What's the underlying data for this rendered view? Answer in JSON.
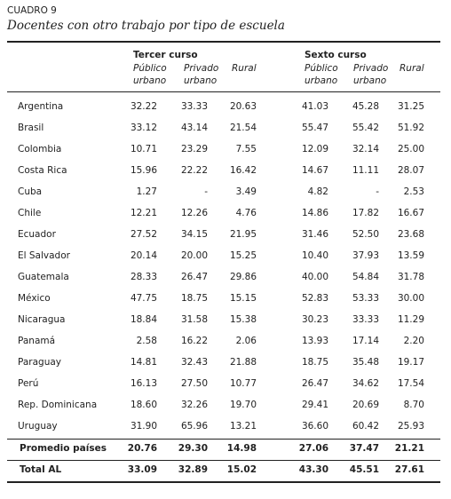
{
  "header": {
    "label": "CUADRO 9",
    "title": "Docentes con otro trabajo por tipo de escuela"
  },
  "table": {
    "groups": [
      "Tercer curso",
      "Sexto curso"
    ],
    "columns": [
      [
        "Público",
        "urbano"
      ],
      [
        "Privado",
        "urbano"
      ],
      [
        "Rural"
      ],
      [
        "Público",
        "urbano"
      ],
      [
        "Privado",
        "urbano"
      ],
      [
        "Rural"
      ]
    ],
    "rows": [
      [
        "Argentina",
        "32.22",
        "33.33",
        "20.63",
        "41.03",
        "45.28",
        "31.25"
      ],
      [
        "Brasil",
        "33.12",
        "43.14",
        "21.54",
        "55.47",
        "55.42",
        "51.92"
      ],
      [
        "Colombia",
        "10.71",
        "23.29",
        "7.55",
        "12.09",
        "32.14",
        "25.00"
      ],
      [
        "Costa Rica",
        "15.96",
        "22.22",
        "16.42",
        "14.67",
        "11.11",
        "28.07"
      ],
      [
        "Cuba",
        "1.27",
        "-",
        "3.49",
        "4.82",
        "-",
        "2.53"
      ],
      [
        "Chile",
        "12.21",
        "12.26",
        "4.76",
        "14.86",
        "17.82",
        "16.67"
      ],
      [
        "Ecuador",
        "27.52",
        "34.15",
        "21.95",
        "31.46",
        "52.50",
        "23.68"
      ],
      [
        "El Salvador",
        "20.14",
        "20.00",
        "15.25",
        "10.40",
        "37.93",
        "13.59"
      ],
      [
        "Guatemala",
        "28.33",
        "26.47",
        "29.86",
        "40.00",
        "54.84",
        "31.78"
      ],
      [
        "México",
        "47.75",
        "18.75",
        "15.15",
        "52.83",
        "53.33",
        "30.00"
      ],
      [
        "Nicaragua",
        "18.84",
        "31.58",
        "15.38",
        "30.23",
        "33.33",
        "11.29"
      ],
      [
        "Panamá",
        "2.58",
        "16.22",
        "2.06",
        "13.93",
        "17.14",
        "2.20"
      ],
      [
        "Paraguay",
        "14.81",
        "32.43",
        "21.88",
        "18.75",
        "35.48",
        "19.17"
      ],
      [
        "Perú",
        "16.13",
        "27.50",
        "10.77",
        "26.47",
        "34.62",
        "17.54"
      ],
      [
        "Rep. Dominicana",
        "18.60",
        "32.26",
        "19.70",
        "29.41",
        "20.69",
        "8.70"
      ],
      [
        "Uruguay",
        "31.90",
        "65.96",
        "13.21",
        "36.60",
        "60.42",
        "25.93"
      ]
    ],
    "summary_rows": [
      [
        "Promedio países",
        "20.76",
        "29.30",
        "14.98",
        "27.06",
        "37.47",
        "21.21"
      ],
      [
        "Total AL",
        "33.09",
        "32.89",
        "15.02",
        "43.30",
        "45.51",
        "27.61"
      ]
    ]
  }
}
